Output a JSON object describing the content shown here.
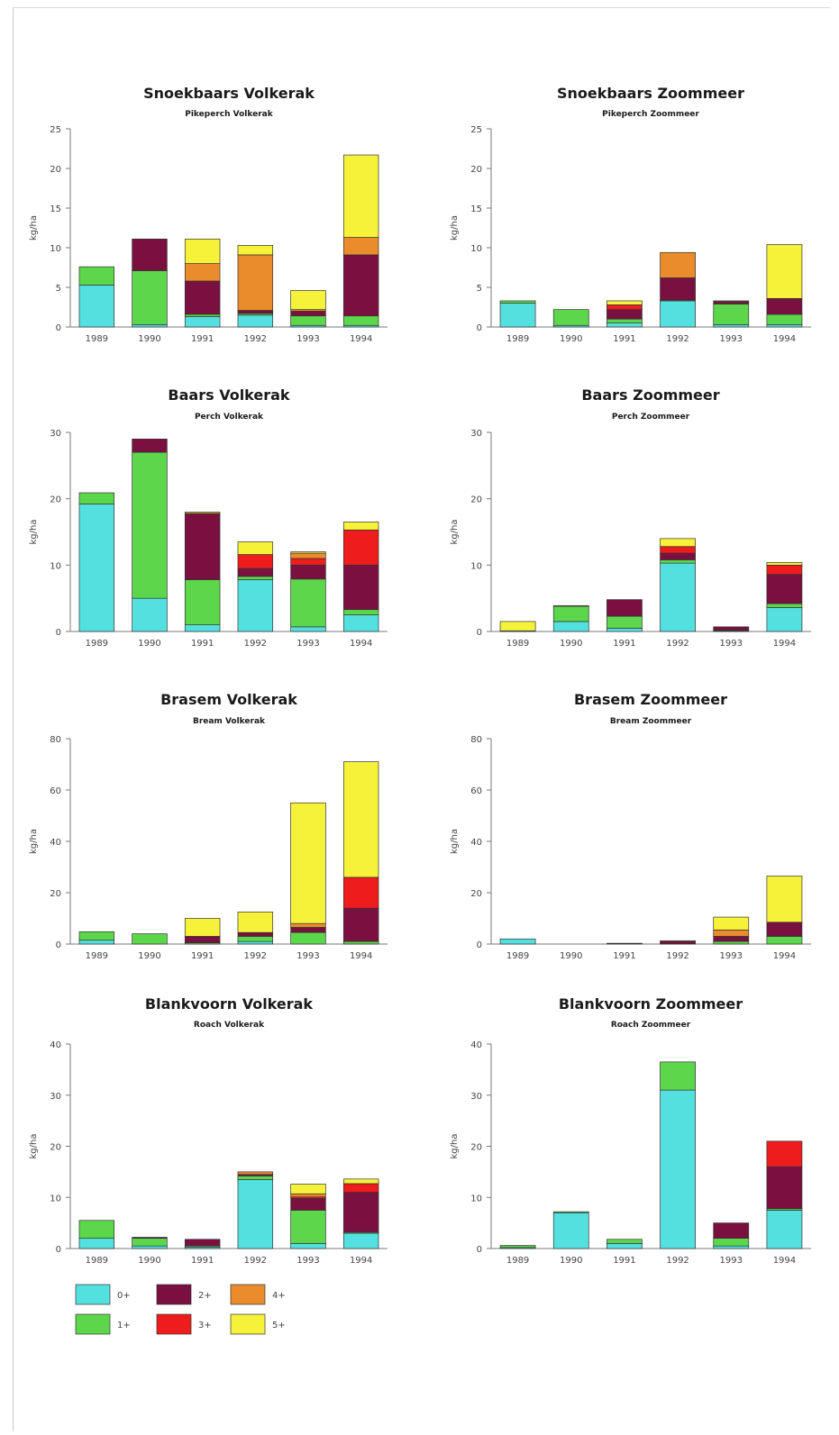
{
  "colors": {
    "0+": "#55e0e0",
    "1+": "#5cd64a",
    "2+": "#7a1040",
    "3+": "#ee1c1c",
    "4+": "#ea8c2c",
    "5+": "#f6f23a"
  },
  "age_classes": [
    "0+",
    "1+",
    "2+",
    "3+",
    "4+",
    "5+"
  ],
  "legend": {
    "items": [
      {
        "key": "0+",
        "label": "0+"
      },
      {
        "key": "2+",
        "label": "2+"
      },
      {
        "key": "4+",
        "label": "4+"
      },
      {
        "key": "1+",
        "label": "1+"
      },
      {
        "key": "3+",
        "label": "3+"
      },
      {
        "key": "5+",
        "label": "5+"
      }
    ]
  },
  "chart_data": [
    {
      "type": "bar",
      "stacked": true,
      "title": "Snoekbaars Volkerak",
      "subtitle": "Pikeperch Volkerak",
      "ylabel": "kg/ha",
      "ylim": [
        0,
        25
      ],
      "yticks": [
        0,
        5,
        10,
        15,
        20,
        25
      ],
      "categories": [
        "1989",
        "1990",
        "1991",
        "1992",
        "1993",
        "1994"
      ],
      "series": [
        {
          "name": "0+",
          "values": [
            5.3,
            0.3,
            1.3,
            1.5,
            0.2,
            0.2
          ]
        },
        {
          "name": "1+",
          "values": [
            2.3,
            6.8,
            0.3,
            0.2,
            1.2,
            1.2
          ]
        },
        {
          "name": "2+",
          "values": [
            0,
            4.0,
            4.2,
            0.4,
            0.6,
            7.7
          ]
        },
        {
          "name": "3+",
          "values": [
            0,
            0,
            0,
            0,
            0,
            0
          ]
        },
        {
          "name": "4+",
          "values": [
            0,
            0,
            2.2,
            7.0,
            0.2,
            2.2
          ]
        },
        {
          "name": "5+",
          "values": [
            0,
            0,
            3.1,
            1.2,
            2.4,
            10.4
          ]
        }
      ]
    },
    {
      "type": "bar",
      "stacked": true,
      "title": "Snoekbaars Zoommeer",
      "subtitle": "Pikeperch Zoommeer",
      "ylabel": "kg/ha",
      "ylim": [
        0,
        25
      ],
      "yticks": [
        0,
        5,
        10,
        15,
        20,
        25
      ],
      "categories": [
        "1989",
        "1990",
        "1991",
        "1992",
        "1993",
        "1994"
      ],
      "series": [
        {
          "name": "0+",
          "values": [
            3.0,
            0.2,
            0.5,
            3.3,
            0.3,
            0.3
          ]
        },
        {
          "name": "1+",
          "values": [
            0.3,
            2.0,
            0.5,
            0.1,
            2.6,
            1.3
          ]
        },
        {
          "name": "2+",
          "values": [
            0,
            0,
            1.2,
            2.8,
            0.3,
            2.0
          ]
        },
        {
          "name": "3+",
          "values": [
            0,
            0,
            0.6,
            0,
            0,
            0
          ]
        },
        {
          "name": "4+",
          "values": [
            0,
            0,
            0,
            3.2,
            0.1,
            0
          ]
        },
        {
          "name": "5+",
          "values": [
            0,
            0,
            0.5,
            0,
            0,
            6.8
          ]
        }
      ]
    },
    {
      "type": "bar",
      "stacked": true,
      "title": "Baars Volkerak",
      "subtitle": "Perch Volkerak",
      "ylabel": "kg/ha",
      "ylim": [
        0,
        30
      ],
      "yticks": [
        0,
        10,
        20,
        30
      ],
      "categories": [
        "1989",
        "1990",
        "1991",
        "1992",
        "1993",
        "1994"
      ],
      "series": [
        {
          "name": "0+",
          "values": [
            19.2,
            5.0,
            1.0,
            7.8,
            0.7,
            2.5
          ]
        },
        {
          "name": "1+",
          "values": [
            1.7,
            22.0,
            6.8,
            0.5,
            7.2,
            0.8
          ]
        },
        {
          "name": "2+",
          "values": [
            0,
            2.0,
            10.0,
            1.2,
            2.1,
            6.7
          ]
        },
        {
          "name": "3+",
          "values": [
            0,
            0,
            0,
            2.1,
            1.0,
            5.3
          ]
        },
        {
          "name": "4+",
          "values": [
            0,
            0,
            0,
            0,
            0.8,
            0
          ]
        },
        {
          "name": "5+",
          "values": [
            0,
            0,
            0.2,
            1.9,
            0.2,
            1.2
          ]
        }
      ]
    },
    {
      "type": "bar",
      "stacked": true,
      "title": "Baars Zoommeer",
      "subtitle": "Perch Zoommeer",
      "ylabel": "kg/ha",
      "ylim": [
        0,
        30
      ],
      "yticks": [
        0,
        10,
        20,
        30
      ],
      "categories": [
        "1989",
        "1990",
        "1991",
        "1992",
        "1993",
        "1994"
      ],
      "series": [
        {
          "name": "0+",
          "values": [
            0.1,
            1.5,
            0.5,
            10.3,
            0.1,
            3.6
          ]
        },
        {
          "name": "1+",
          "values": [
            0,
            2.3,
            1.8,
            0.5,
            0.1,
            0.6
          ]
        },
        {
          "name": "2+",
          "values": [
            0,
            0,
            2.5,
            1.0,
            0.5,
            4.4
          ]
        },
        {
          "name": "3+",
          "values": [
            0,
            0,
            0,
            1.0,
            0,
            1.4
          ]
        },
        {
          "name": "4+",
          "values": [
            0,
            0,
            0,
            0,
            0,
            0
          ]
        },
        {
          "name": "5+",
          "values": [
            1.4,
            0.1,
            0,
            1.2,
            0,
            0.4
          ]
        }
      ]
    },
    {
      "type": "bar",
      "stacked": true,
      "title": "Brasem Volkerak",
      "subtitle": "Bream Volkerak",
      "ylabel": "kg/ha",
      "ylim": [
        0,
        80
      ],
      "yticks": [
        0,
        20,
        40,
        60,
        80
      ],
      "categories": [
        "1989",
        "1990",
        "1991",
        "1992",
        "1993",
        "1994"
      ],
      "series": [
        {
          "name": "0+",
          "values": [
            1.5,
            0,
            0,
            1.0,
            0,
            0
          ]
        },
        {
          "name": "1+",
          "values": [
            3.3,
            4.0,
            0.5,
            2.0,
            4.5,
            1.0
          ]
        },
        {
          "name": "2+",
          "values": [
            0,
            0,
            2.5,
            1.5,
            2.0,
            13.0
          ]
        },
        {
          "name": "3+",
          "values": [
            0,
            0,
            0,
            0,
            0,
            12.0
          ]
        },
        {
          "name": "4+",
          "values": [
            0,
            0,
            0,
            0,
            1.5,
            0
          ]
        },
        {
          "name": "5+",
          "values": [
            0,
            0,
            7.0,
            8.0,
            47.0,
            45.0
          ]
        }
      ]
    },
    {
      "type": "bar",
      "stacked": true,
      "title": "Brasem Zoommeer",
      "subtitle": "Bream Zoommeer",
      "ylabel": "kg/ha",
      "ylim": [
        0,
        80
      ],
      "yticks": [
        0,
        20,
        40,
        60,
        80
      ],
      "categories": [
        "1989",
        "1990",
        "1991",
        "1992",
        "1993",
        "1994"
      ],
      "series": [
        {
          "name": "0+",
          "values": [
            2.0,
            0,
            0,
            0,
            0,
            0
          ]
        },
        {
          "name": "1+",
          "values": [
            0,
            0,
            0,
            0,
            1.0,
            3.0
          ]
        },
        {
          "name": "2+",
          "values": [
            0,
            0,
            0.3,
            1.0,
            2.0,
            5.5
          ]
        },
        {
          "name": "3+",
          "values": [
            0,
            0,
            0,
            0,
            0,
            0
          ]
        },
        {
          "name": "4+",
          "values": [
            0,
            0,
            0,
            0,
            2.5,
            0
          ]
        },
        {
          "name": "5+",
          "values": [
            0,
            0,
            0,
            0.3,
            5.0,
            18.0
          ]
        }
      ]
    },
    {
      "type": "bar",
      "stacked": true,
      "title": "Blankvoorn Volkerak",
      "subtitle": "Roach Volkerak",
      "ylabel": "kg/ha",
      "ylim": [
        0,
        40
      ],
      "yticks": [
        0,
        10,
        20,
        30,
        40
      ],
      "categories": [
        "1989",
        "1990",
        "1991",
        "1992",
        "1993",
        "1994"
      ],
      "series": [
        {
          "name": "0+",
          "values": [
            2.0,
            0.5,
            0.3,
            13.5,
            1.0,
            3.0
          ]
        },
        {
          "name": "1+",
          "values": [
            3.5,
            1.5,
            0.2,
            0.7,
            6.5,
            0.2
          ]
        },
        {
          "name": "2+",
          "values": [
            0,
            0.2,
            1.3,
            0.3,
            2.3,
            7.8
          ]
        },
        {
          "name": "3+",
          "values": [
            0,
            0,
            0,
            0,
            0.3,
            1.7
          ]
        },
        {
          "name": "4+",
          "values": [
            0,
            0,
            0,
            0.5,
            0.6,
            0
          ]
        },
        {
          "name": "5+",
          "values": [
            0,
            0,
            0,
            0,
            1.9,
            0.9
          ]
        }
      ]
    },
    {
      "type": "bar",
      "stacked": true,
      "title": "Blankvoorn Zoommeer",
      "subtitle": "Roach Zoommeer",
      "ylabel": "kg/ha",
      "ylim": [
        0,
        40
      ],
      "yticks": [
        0,
        10,
        20,
        30,
        40
      ],
      "categories": [
        "1989",
        "1990",
        "1991",
        "1992",
        "1993",
        "1994"
      ],
      "series": [
        {
          "name": "0+",
          "values": [
            0.2,
            7.0,
            1.0,
            31.0,
            0.5,
            7.5
          ]
        },
        {
          "name": "1+",
          "values": [
            0.4,
            0.2,
            0.8,
            5.5,
            1.5,
            0.3
          ]
        },
        {
          "name": "2+",
          "values": [
            0,
            0,
            0,
            0,
            3.0,
            8.2
          ]
        },
        {
          "name": "3+",
          "values": [
            0,
            0,
            0,
            0,
            0,
            5.0
          ]
        },
        {
          "name": "4+",
          "values": [
            0,
            0,
            0,
            0,
            0,
            0
          ]
        },
        {
          "name": "5+",
          "values": [
            0,
            0,
            0,
            0,
            0,
            0
          ]
        }
      ]
    }
  ]
}
